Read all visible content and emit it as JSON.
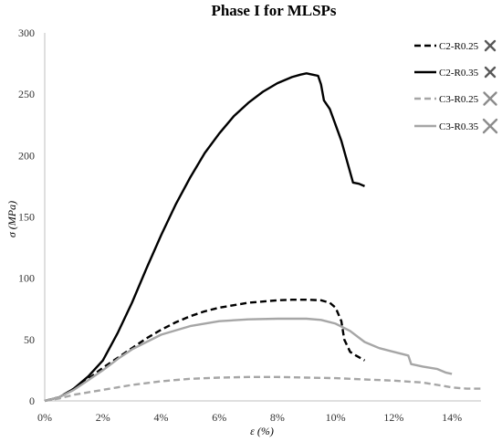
{
  "chart_data": {
    "type": "line",
    "title": "Phase I for MLSPs",
    "xlabel": "ε (%)",
    "ylabel": "σ (MPa)",
    "xlim": [
      0,
      15
    ],
    "ylim": [
      0,
      300
    ],
    "x_ticks": [
      "0%",
      "2%",
      "4%",
      "6%",
      "8%",
      "10%",
      "12%",
      "14%"
    ],
    "y_ticks": [
      "0",
      "50",
      "100",
      "150",
      "200",
      "250",
      "300"
    ],
    "grid": false,
    "legend_position": "top-right",
    "series": [
      {
        "name": "C2-R0.25",
        "color": "#000000",
        "dash": "dashed",
        "marker": "x-mark",
        "x": [
          0,
          0.5,
          1.0,
          1.5,
          2.0,
          2.5,
          3.0,
          3.5,
          4.0,
          4.5,
          5.0,
          5.5,
          6.0,
          6.5,
          7.0,
          7.5,
          8.0,
          8.5,
          9.0,
          9.5,
          9.8,
          10.0,
          10.2,
          10.3,
          10.5,
          10.7,
          11.0
        ],
        "y": [
          0,
          3,
          10,
          18,
          27,
          35,
          43,
          51,
          58,
          64,
          69,
          73,
          76,
          78,
          80,
          81,
          82,
          82.5,
          82.5,
          82,
          80,
          76,
          65,
          50,
          40,
          37,
          33
        ]
      },
      {
        "name": "C2-R0.35",
        "color": "#000000",
        "dash": "solid",
        "marker": "x-mark",
        "x": [
          0,
          0.5,
          1.0,
          1.5,
          2.0,
          2.5,
          3.0,
          3.5,
          4.0,
          4.5,
          5.0,
          5.5,
          6.0,
          6.5,
          7.0,
          7.5,
          8.0,
          8.5,
          8.8,
          9.0,
          9.2,
          9.4,
          9.5,
          9.6,
          9.8,
          10.0,
          10.2,
          10.4,
          10.6,
          10.8,
          11.0
        ],
        "y": [
          0,
          3,
          10,
          20,
          33,
          55,
          80,
          108,
          135,
          160,
          182,
          202,
          218,
          232,
          243,
          252,
          259,
          264,
          266,
          267,
          266,
          265,
          258,
          245,
          238,
          225,
          212,
          195,
          178,
          177,
          175
        ]
      },
      {
        "name": "C3-R0.25",
        "color": "#a6a6a6",
        "dash": "dashed",
        "marker": "x-mark",
        "x": [
          0,
          0.5,
          1.0,
          2.0,
          3.0,
          4.0,
          5.0,
          6.0,
          7.0,
          8.0,
          9.0,
          10.0,
          11.0,
          12.0,
          13.0,
          13.5,
          14.0,
          14.5,
          15.0
        ],
        "y": [
          0,
          2,
          5,
          9,
          13,
          16,
          18,
          19,
          19.5,
          19.5,
          19,
          18.5,
          17.5,
          16.5,
          15,
          13,
          11,
          10,
          10
        ]
      },
      {
        "name": "C3-R0.35",
        "color": "#a6a6a6",
        "dash": "solid",
        "marker": "x-mark",
        "x": [
          0,
          0.5,
          1.0,
          1.5,
          2.0,
          2.5,
          3.0,
          3.5,
          4.0,
          5.0,
          6.0,
          7.0,
          8.0,
          9.0,
          9.5,
          10.0,
          10.5,
          11.0,
          11.5,
          12.0,
          12.5,
          12.6,
          13.0,
          13.5,
          13.8,
          14.0
        ],
        "y": [
          0,
          3,
          9,
          17,
          25,
          34,
          42,
          48,
          54,
          61,
          65,
          66.5,
          67,
          67,
          66,
          63,
          57,
          48,
          43,
          40,
          37,
          30,
          28,
          26,
          23,
          22
        ]
      }
    ]
  }
}
